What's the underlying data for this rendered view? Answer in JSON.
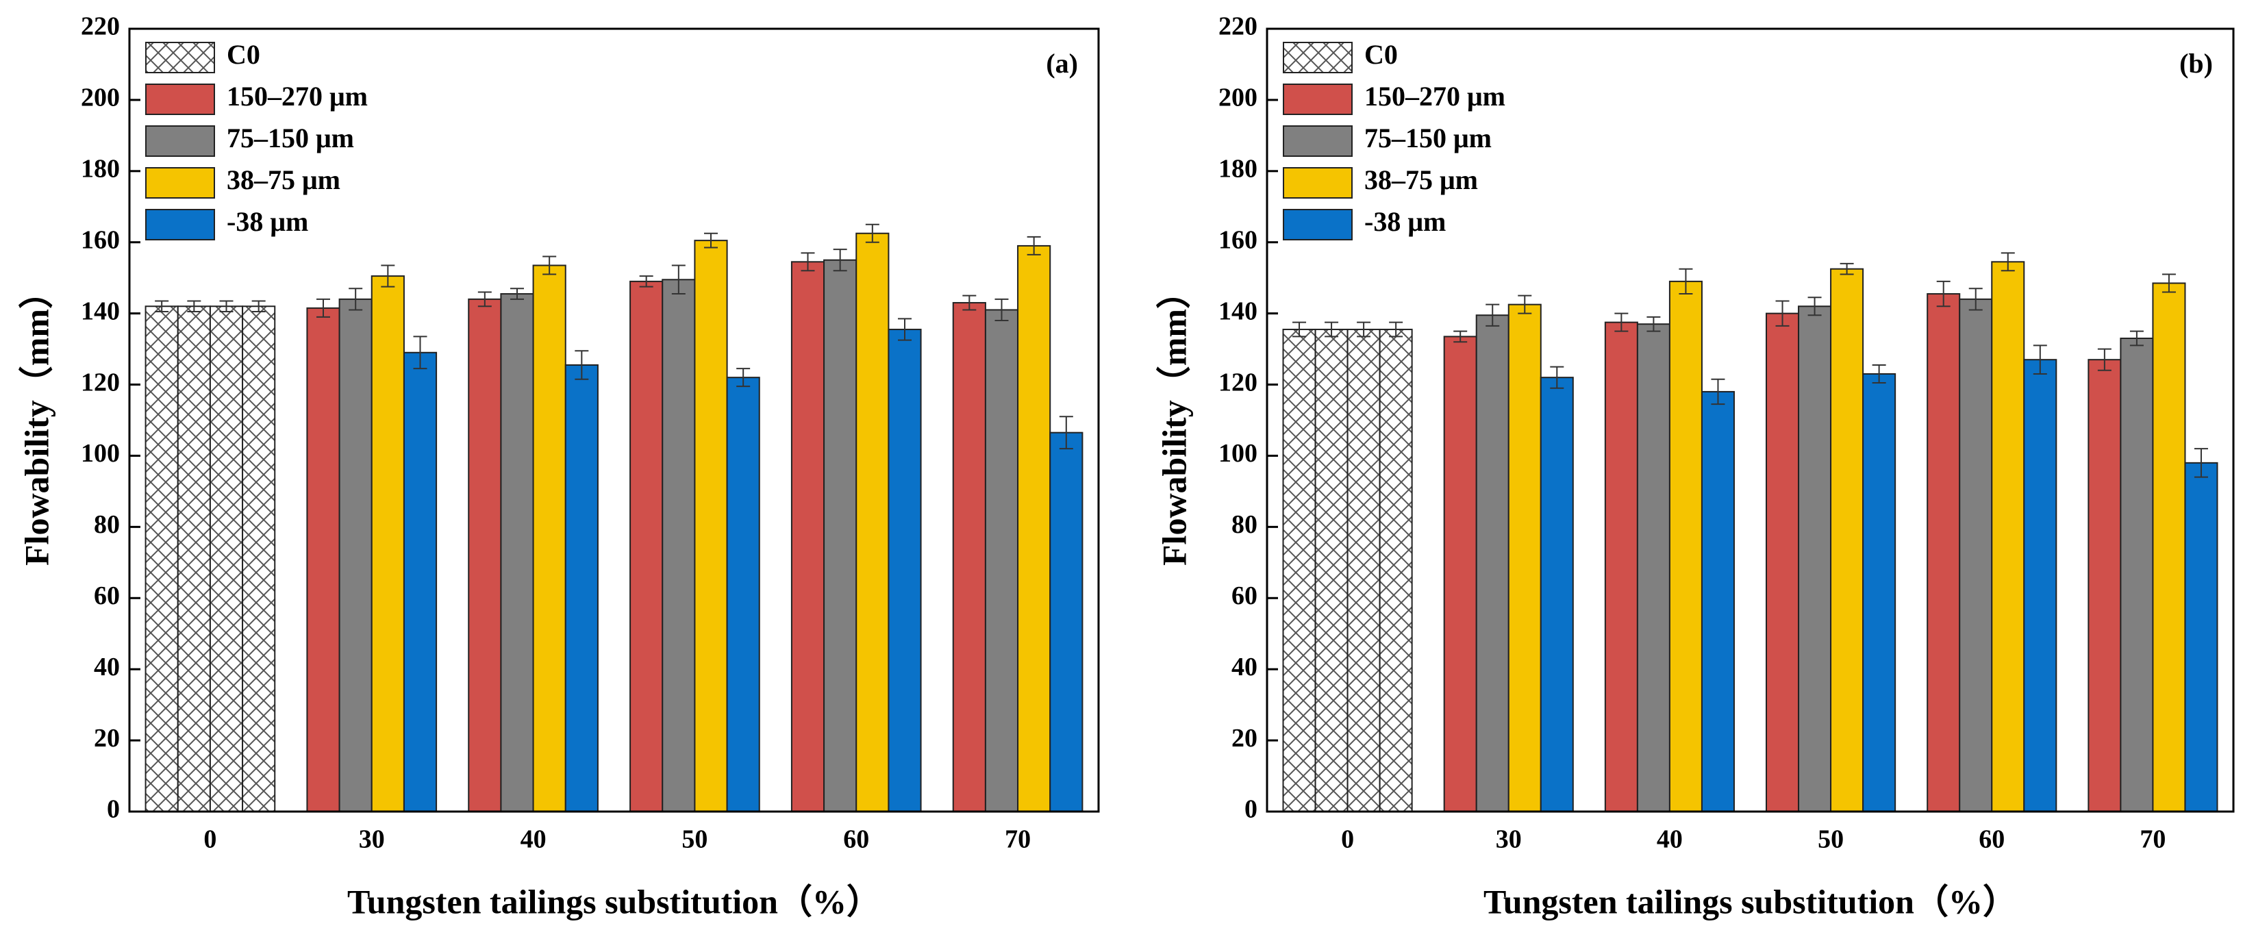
{
  "chart_data": [
    {
      "type": "bar",
      "annotation": "(a)",
      "ylabel": "Flowability（mm）",
      "xlabel": "Tungsten tailings substitution（%）",
      "categories": [
        "0",
        "30",
        "40",
        "50",
        "60",
        "70"
      ],
      "ylim": [
        0,
        220
      ],
      "yticks": [
        0,
        20,
        40,
        60,
        80,
        100,
        120,
        140,
        160,
        180,
        200,
        220
      ],
      "legend": "upper left",
      "series": [
        {
          "name": "C0",
          "color": "#ffffff",
          "hatch": true,
          "values": [
            142,
            null,
            null,
            null,
            null,
            null
          ],
          "errors": [
            1.5,
            null,
            null,
            null,
            null,
            null
          ]
        },
        {
          "name": "150–270 μm",
          "color": "#d0504b",
          "values": [
            null,
            141.5,
            144,
            149,
            154.5,
            143
          ],
          "errors": [
            null,
            2.5,
            2,
            1.5,
            2.5,
            2
          ]
        },
        {
          "name": "75–150 μm",
          "color": "#808080",
          "values": [
            null,
            144,
            145.5,
            149.5,
            155,
            141
          ],
          "errors": [
            null,
            3,
            1.5,
            4,
            3,
            3
          ]
        },
        {
          "name": "38–75 μm",
          "color": "#f5c400",
          "values": [
            null,
            150.5,
            153.5,
            160.5,
            162.5,
            159
          ],
          "errors": [
            null,
            3,
            2.5,
            2,
            2.5,
            2.5
          ]
        },
        {
          "name": "-38 μm",
          "color": "#0a72c8",
          "values": [
            null,
            129,
            125.5,
            122,
            135.5,
            106.5
          ],
          "errors": [
            null,
            4.5,
            4,
            2.5,
            3,
            4.5
          ]
        }
      ]
    },
    {
      "type": "bar",
      "annotation": "(b)",
      "ylabel": "Flowability（mm）",
      "xlabel": "Tungsten tailings substitution（%）",
      "categories": [
        "0",
        "30",
        "40",
        "50",
        "60",
        "70"
      ],
      "ylim": [
        0,
        220
      ],
      "yticks": [
        0,
        20,
        40,
        60,
        80,
        100,
        120,
        140,
        160,
        180,
        200,
        220
      ],
      "legend": "upper left",
      "series": [
        {
          "name": "C0",
          "color": "#ffffff",
          "hatch": true,
          "values": [
            135.5,
            null,
            null,
            null,
            null,
            null
          ],
          "errors": [
            2,
            null,
            null,
            null,
            null,
            null
          ]
        },
        {
          "name": "150–270 μm",
          "color": "#d0504b",
          "values": [
            null,
            133.5,
            137.5,
            140,
            145.5,
            127
          ],
          "errors": [
            null,
            1.5,
            2.5,
            3.5,
            3.5,
            3
          ]
        },
        {
          "name": "75–150 μm",
          "color": "#808080",
          "values": [
            null,
            139.5,
            137,
            142,
            144,
            133
          ],
          "errors": [
            null,
            3,
            2,
            2.5,
            3,
            2
          ]
        },
        {
          "name": "38–75 μm",
          "color": "#f5c400",
          "values": [
            null,
            142.5,
            149,
            152.5,
            154.5,
            148.5
          ],
          "errors": [
            null,
            2.5,
            3.5,
            1.5,
            2.5,
            2.5
          ]
        },
        {
          "name": "-38 μm",
          "color": "#0a72c8",
          "values": [
            null,
            122,
            118,
            123,
            127,
            98
          ],
          "errors": [
            null,
            3,
            3.5,
            2.5,
            4,
            4
          ]
        }
      ]
    }
  ]
}
